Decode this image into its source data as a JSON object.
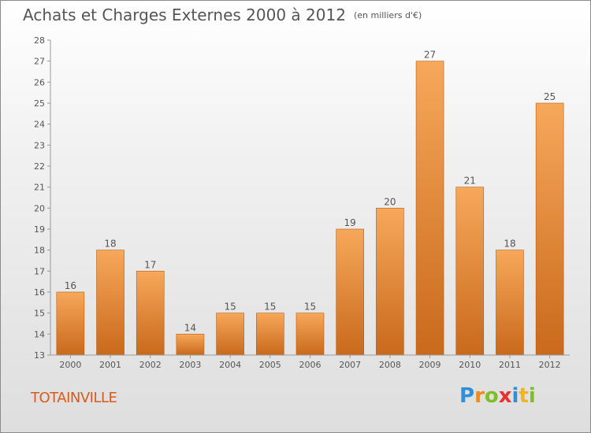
{
  "title": "Achats et Charges Externes 2000 à 2012",
  "unit": "(en milliers d'€)",
  "city": "TOTAINVILLE",
  "logo": {
    "letters": [
      "P",
      "r",
      "o",
      "x",
      "i",
      "t",
      "i"
    ],
    "colors": [
      "#2f8fd8",
      "#f08a1c",
      "#7cbf2a",
      "#e8312c",
      "#2f8fd8",
      "#f0b41c",
      "#7cbf2a"
    ]
  },
  "colors": {
    "bar_top": "#f7a85a",
    "bar_bottom": "#c9691c",
    "bar_edge": "#b65c14",
    "text": "#555555",
    "city": "#d95b1a"
  },
  "chart_data": {
    "type": "bar",
    "title": "Achats et Charges Externes 2000 à 2012",
    "subtitle": "(en milliers d'€)",
    "categories": [
      "2000",
      "2001",
      "2002",
      "2003",
      "2004",
      "2005",
      "2006",
      "2007",
      "2008",
      "2009",
      "2010",
      "2011",
      "2012"
    ],
    "values": [
      16,
      18,
      17,
      14,
      15,
      15,
      15,
      19,
      20,
      27,
      21,
      18,
      25
    ],
    "ylim": [
      13,
      28
    ],
    "yticks": [
      13,
      14,
      15,
      16,
      17,
      18,
      19,
      20,
      21,
      22,
      23,
      24,
      25,
      26,
      27,
      28
    ],
    "grid": false,
    "legend": "none",
    "data_labels": true
  }
}
